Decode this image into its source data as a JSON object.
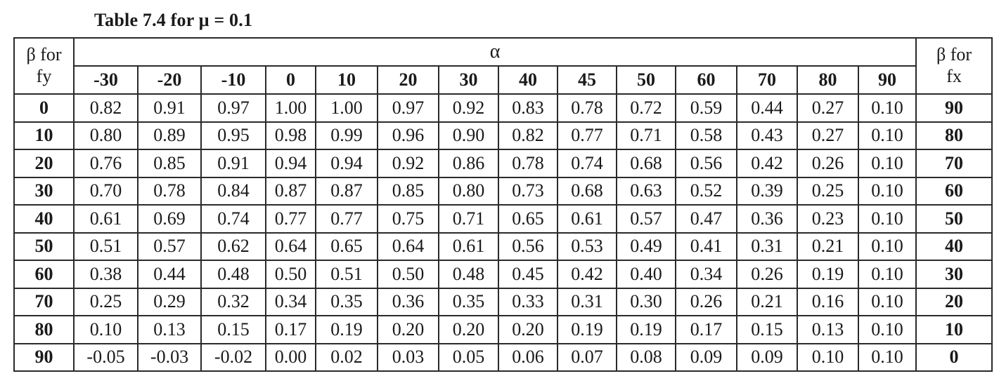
{
  "caption": "Table 7.4 for μ = 0.1",
  "header": {
    "left_top": "β for",
    "left_bottom": "fy",
    "right_top": "β for",
    "right_bottom": "fx",
    "span_label": "α",
    "alpha_values": [
      "-30",
      "-20",
      "-10",
      "0",
      "10",
      "20",
      "30",
      "40",
      "45",
      "50",
      "60",
      "70",
      "80",
      "90"
    ]
  },
  "rows": [
    {
      "beta_fy": "0",
      "beta_fx": "90",
      "values": [
        "0.82",
        "0.91",
        "0.97",
        "1.00",
        "1.00",
        "0.97",
        "0.92",
        "0.83",
        "0.78",
        "0.72",
        "0.59",
        "0.44",
        "0.27",
        "0.10"
      ]
    },
    {
      "beta_fy": "10",
      "beta_fx": "80",
      "values": [
        "0.80",
        "0.89",
        "0.95",
        "0.98",
        "0.99",
        "0.96",
        "0.90",
        "0.82",
        "0.77",
        "0.71",
        "0.58",
        "0.43",
        "0.27",
        "0.10"
      ]
    },
    {
      "beta_fy": "20",
      "beta_fx": "70",
      "values": [
        "0.76",
        "0.85",
        "0.91",
        "0.94",
        "0.94",
        "0.92",
        "0.86",
        "0.78",
        "0.74",
        "0.68",
        "0.56",
        "0.42",
        "0.26",
        "0.10"
      ]
    },
    {
      "beta_fy": "30",
      "beta_fx": "60",
      "values": [
        "0.70",
        "0.78",
        "0.84",
        "0.87",
        "0.87",
        "0.85",
        "0.80",
        "0.73",
        "0.68",
        "0.63",
        "0.52",
        "0.39",
        "0.25",
        "0.10"
      ]
    },
    {
      "beta_fy": "40",
      "beta_fx": "50",
      "values": [
        "0.61",
        "0.69",
        "0.74",
        "0.77",
        "0.77",
        "0.75",
        "0.71",
        "0.65",
        "0.61",
        "0.57",
        "0.47",
        "0.36",
        "0.23",
        "0.10"
      ]
    },
    {
      "beta_fy": "50",
      "beta_fx": "40",
      "values": [
        "0.51",
        "0.57",
        "0.62",
        "0.64",
        "0.65",
        "0.64",
        "0.61",
        "0.56",
        "0.53",
        "0.49",
        "0.41",
        "0.31",
        "0.21",
        "0.10"
      ]
    },
    {
      "beta_fy": "60",
      "beta_fx": "30",
      "values": [
        "0.38",
        "0.44",
        "0.48",
        "0.50",
        "0.51",
        "0.50",
        "0.48",
        "0.45",
        "0.42",
        "0.40",
        "0.34",
        "0.26",
        "0.19",
        "0.10"
      ]
    },
    {
      "beta_fy": "70",
      "beta_fx": "20",
      "values": [
        "0.25",
        "0.29",
        "0.32",
        "0.34",
        "0.35",
        "0.36",
        "0.35",
        "0.33",
        "0.31",
        "0.30",
        "0.26",
        "0.21",
        "0.16",
        "0.10"
      ]
    },
    {
      "beta_fy": "80",
      "beta_fx": "10",
      "values": [
        "0.10",
        "0.13",
        "0.15",
        "0.17",
        "0.19",
        "0.20",
        "0.20",
        "0.20",
        "0.19",
        "0.19",
        "0.17",
        "0.15",
        "0.13",
        "0.10"
      ]
    },
    {
      "beta_fy": "90",
      "beta_fx": "0",
      "values": [
        "-0.05",
        "-0.03",
        "-0.02",
        "0.00",
        "0.02",
        "0.03",
        "0.05",
        "0.06",
        "0.07",
        "0.08",
        "0.09",
        "0.09",
        "0.10",
        "0.10"
      ]
    }
  ]
}
